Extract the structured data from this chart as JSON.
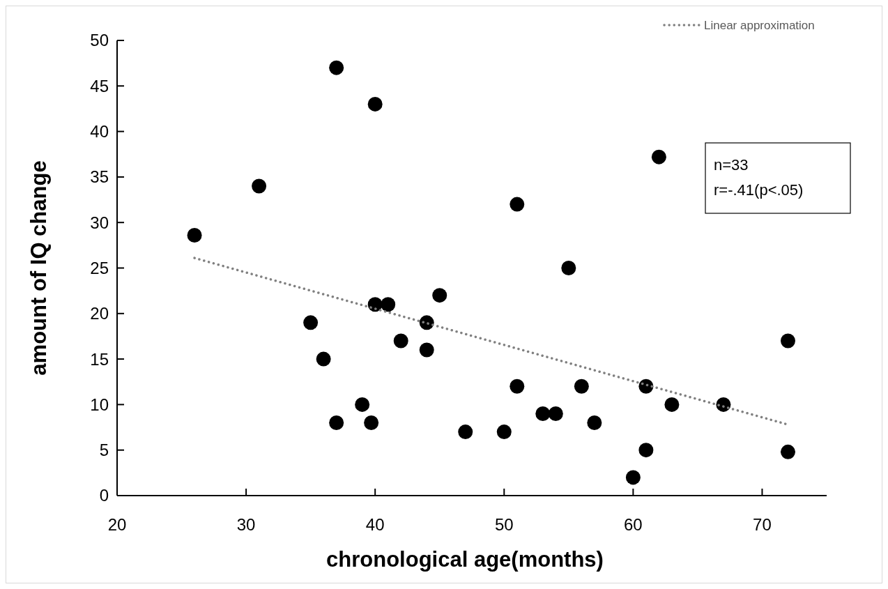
{
  "chart_data": {
    "type": "scatter",
    "xlabel": "chronological age(months)",
    "ylabel": "amount of IQ change",
    "xlim": [
      20,
      75
    ],
    "xticks": [
      20,
      30,
      40,
      50,
      60,
      70
    ],
    "ylim": [
      0,
      50
    ],
    "yticks": [
      0,
      5,
      10,
      15,
      20,
      25,
      30,
      35,
      40,
      45,
      50
    ],
    "grid": false,
    "legend": "top right",
    "marker": "circle",
    "annotations": [
      "n=33",
      "r=-.41(p<.05)"
    ],
    "series": [
      {
        "color": "#000000",
        "x": [
          26,
          31,
          35,
          36,
          37,
          37,
          39,
          39.7,
          40,
          40,
          41,
          42,
          44,
          44,
          45,
          47,
          50,
          51,
          51,
          53,
          54,
          55,
          56,
          57,
          60,
          61,
          61,
          62,
          63,
          67,
          72,
          72
        ],
        "values": [
          28.6,
          34,
          19,
          15,
          47,
          8,
          10,
          8,
          43,
          21,
          21,
          17,
          19,
          16,
          22,
          7,
          7,
          32,
          12,
          9,
          9,
          25,
          12,
          8,
          2,
          12,
          5,
          37.2,
          10,
          10,
          17,
          4.8
        ]
      },
      {
        "type": "line",
        "name": "Linear approximation",
        "color": "#808080",
        "line_style": "dotted",
        "marker": "none",
        "x": [
          26,
          72
        ],
        "values": [
          26.1,
          7.8
        ]
      }
    ]
  }
}
